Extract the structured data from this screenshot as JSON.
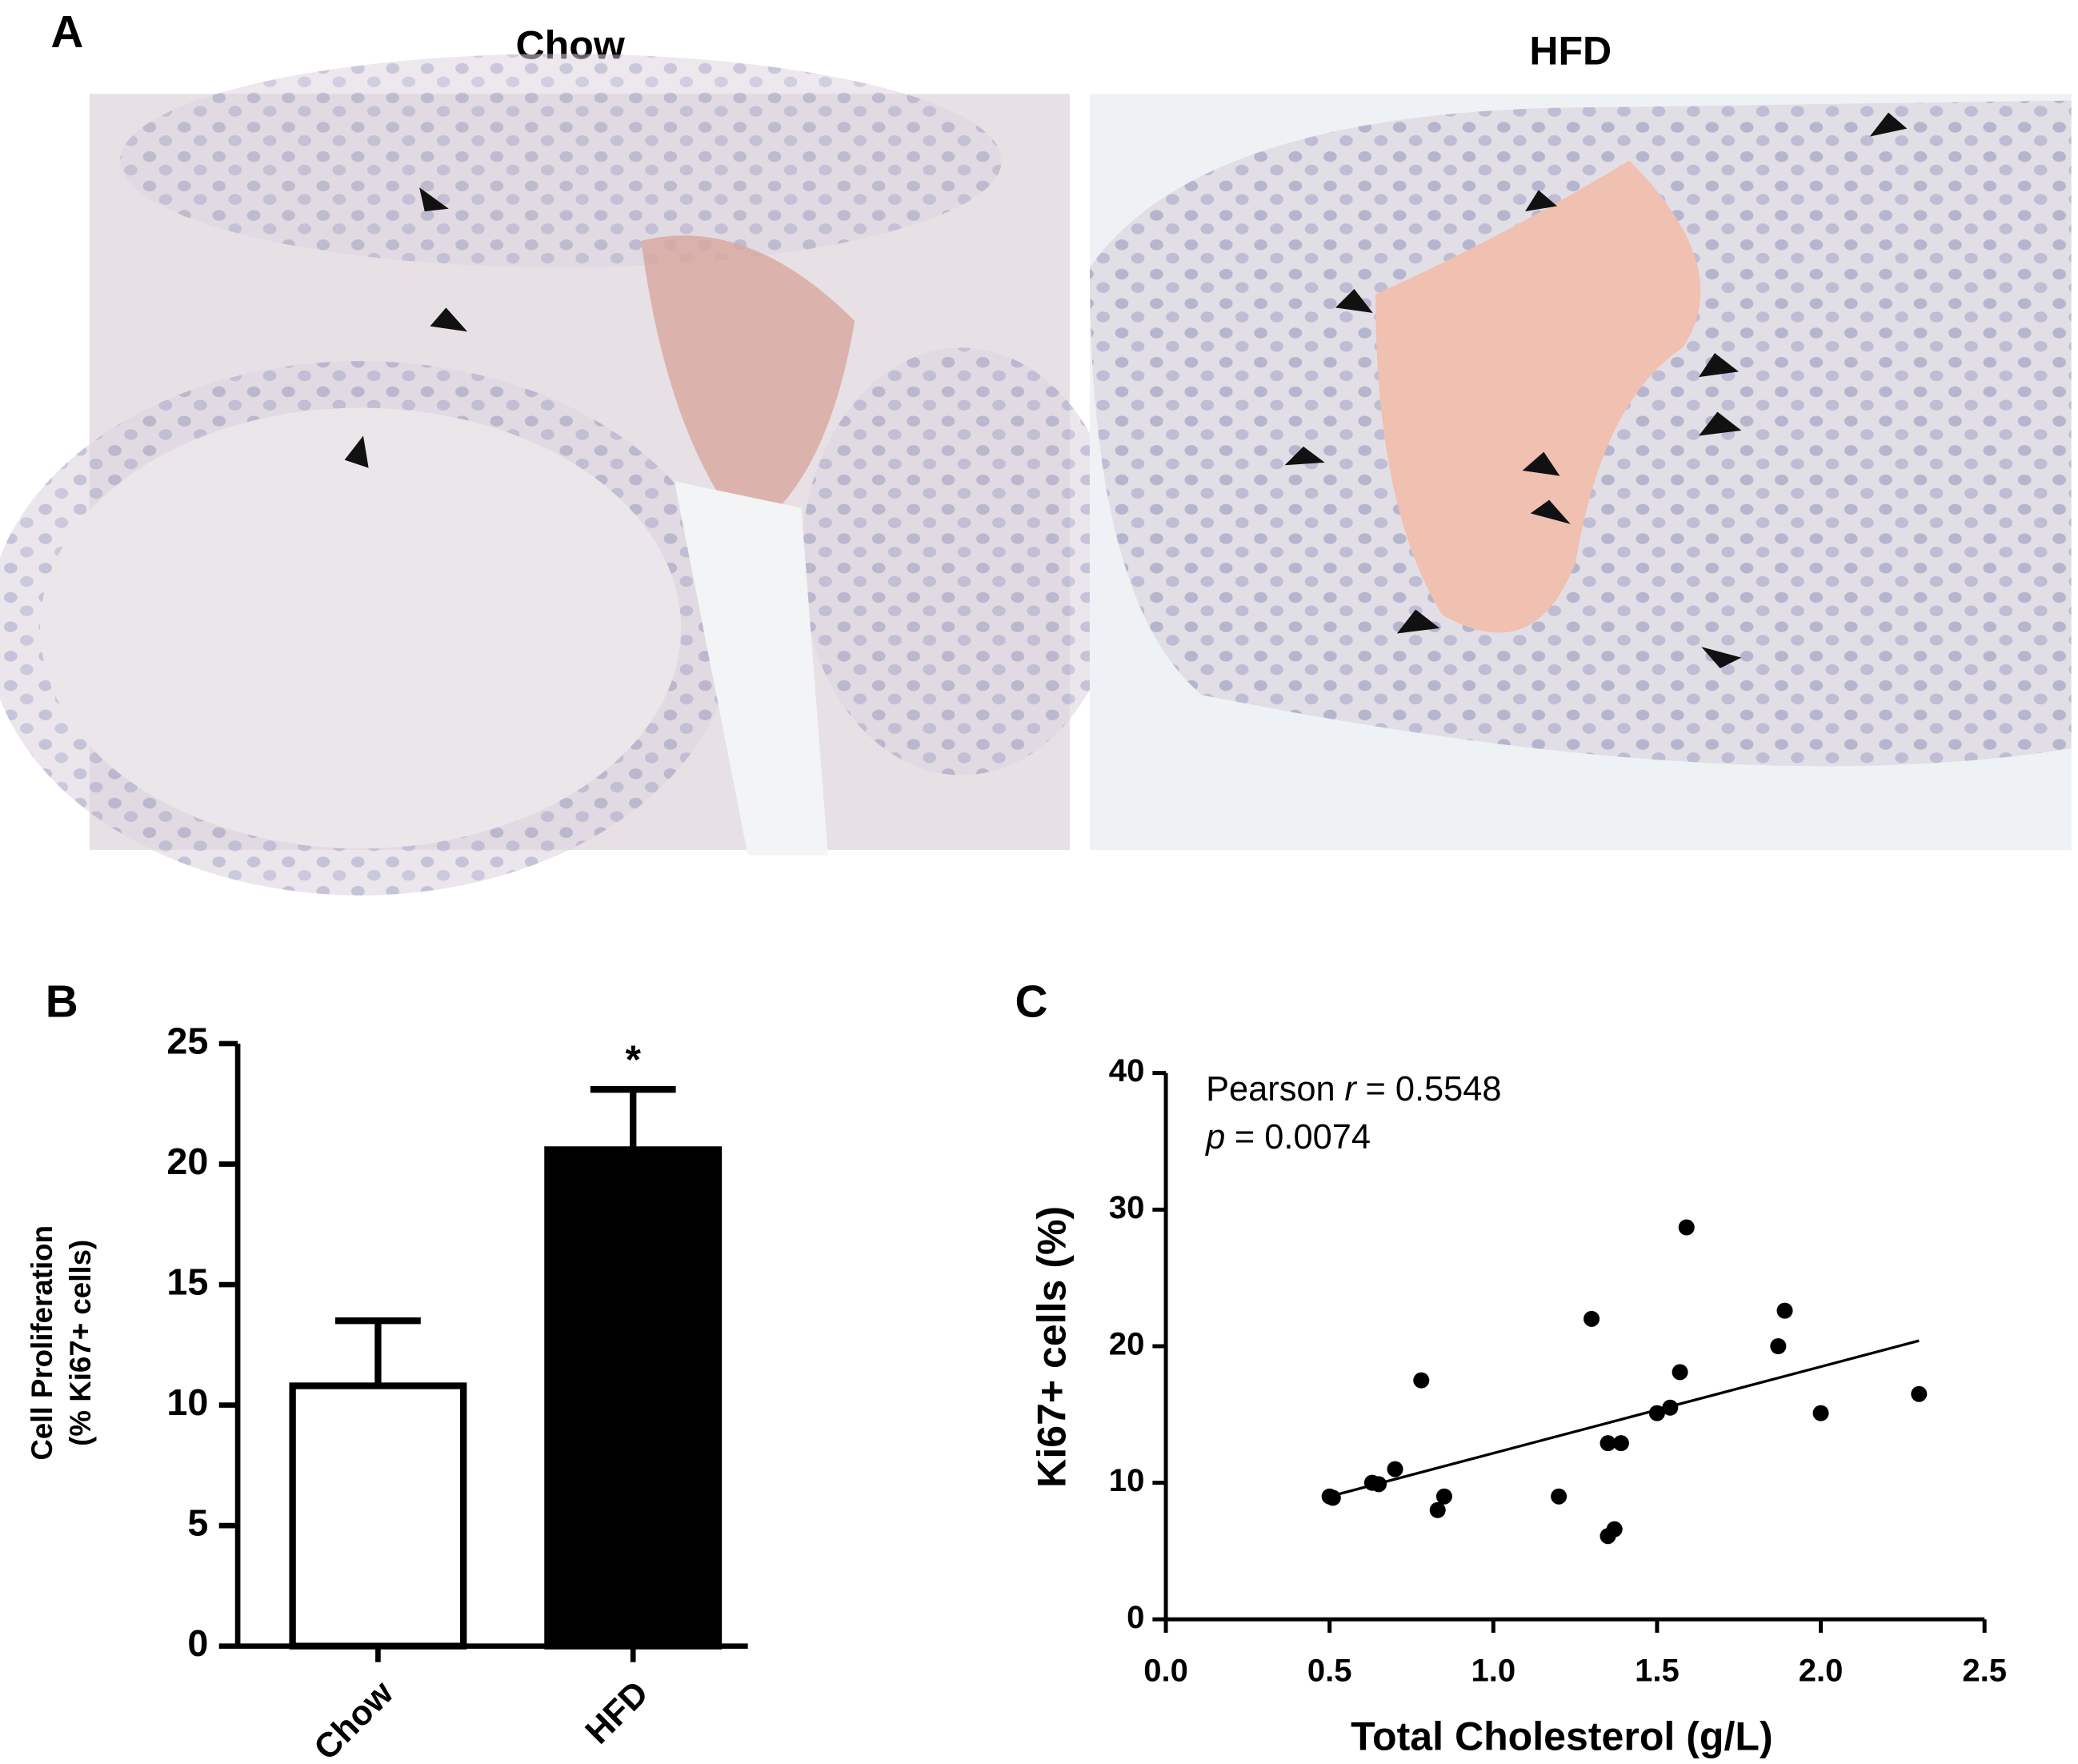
{
  "figure": {
    "panel_labels": [
      "A",
      "B",
      "C"
    ],
    "micrograph_titles": [
      "Chow",
      "HFD"
    ]
  },
  "chart_data": [
    {
      "type": "bar",
      "categories": [
        "Chow",
        "HFD"
      ],
      "values": [
        10.8,
        20.6
      ],
      "errors": [
        2.7,
        2.5
      ],
      "colors": [
        "#ffffff",
        "#000000"
      ],
      "edgecolor": "#000000",
      "ylabel": [
        "Cell Proliferation",
        "(% Ki67+ cells)"
      ],
      "annotation": "*",
      "ylim": [
        0,
        25
      ],
      "yticks": [
        0,
        5,
        10,
        15,
        20,
        25
      ]
    },
    {
      "type": "scatter",
      "color": "#000000",
      "x": [
        0.5,
        0.51,
        0.63,
        0.65,
        0.7,
        0.78,
        0.83,
        0.85,
        1.2,
        1.3,
        1.35,
        1.39,
        1.35,
        1.37,
        1.5,
        1.54,
        1.57,
        1.59,
        1.87,
        1.89,
        2.0,
        2.3
      ],
      "y": [
        9.0,
        8.9,
        10.0,
        9.9,
        11.0,
        17.5,
        8.0,
        9.0,
        9.0,
        22.0,
        12.9,
        12.9,
        6.1,
        6.6,
        15.1,
        15.5,
        18.1,
        28.7,
        20.0,
        22.6,
        15.1,
        16.5
      ],
      "fit_line": {
        "x": [
          0.5,
          2.3
        ],
        "y": [
          9.0,
          20.4
        ]
      },
      "stats": [
        {
          "label": "Pearson",
          "symbol": "r",
          "value": "= 0.5548"
        },
        {
          "symbol": "p",
          "value": "= 0.0074"
        }
      ],
      "xlabel": "Total Cholesterol (g/L)",
      "ylabel": "Ki67+ cells (%)",
      "xlim": [
        0,
        2.5
      ],
      "ylim": [
        0,
        40
      ],
      "xticks": [
        {
          "value": 0,
          "label": "0.0"
        },
        0.5,
        {
          "value": 1,
          "label": "1.0"
        },
        1.5,
        {
          "value": 2,
          "label": "2.0"
        },
        2.5
      ],
      "yticks": [
        0,
        10,
        20,
        30,
        40
      ]
    }
  ]
}
